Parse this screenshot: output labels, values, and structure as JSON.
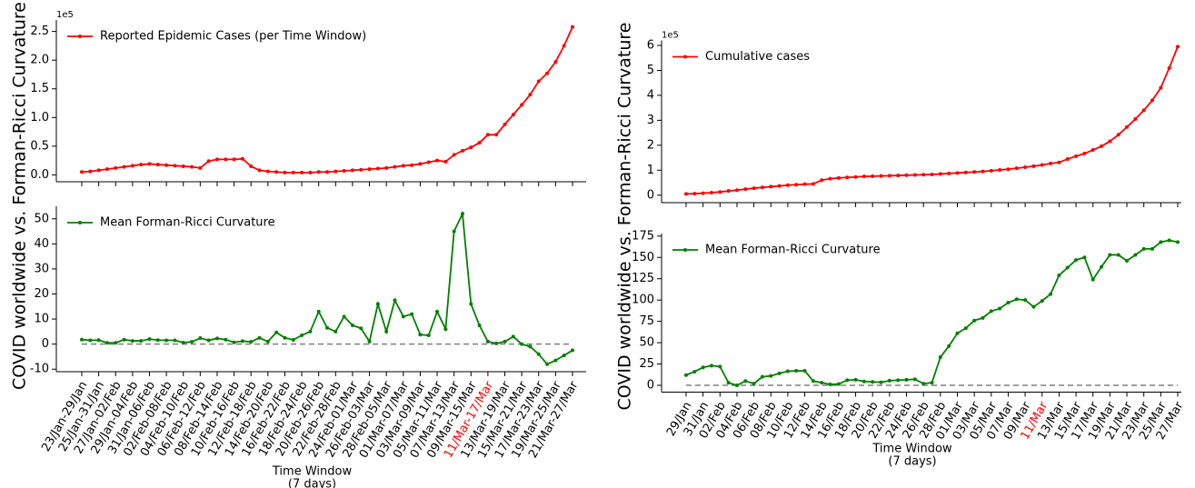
{
  "chart_data": [
    {
      "type": "line",
      "ylabel": "COVID worldwide vs. Forman-Ricci Curvature",
      "offset_label": "1e5",
      "legend": "upper left",
      "ylim": [
        -0.12,
        2.7
      ],
      "yticks": [
        {
          "value": 0,
          "label": "0.0"
        },
        {
          "value": 0.5,
          "label": "0.5"
        },
        {
          "value": 1,
          "label": "1.0"
        },
        {
          "value": 1.5,
          "label": "1.5"
        },
        {
          "value": 2,
          "label": "2.0"
        },
        {
          "value": 2.5,
          "label": "2.5"
        }
      ],
      "series": [
        {
          "name": "Reported Epidemic Cases (per Time Window)",
          "color": "#ff0000",
          "values": [
            0.05,
            0.06,
            0.08,
            0.1,
            0.12,
            0.14,
            0.16,
            0.18,
            0.19,
            0.18,
            0.17,
            0.16,
            0.15,
            0.14,
            0.12,
            0.24,
            0.27,
            0.27,
            0.27,
            0.28,
            0.15,
            0.08,
            0.06,
            0.05,
            0.04,
            0.04,
            0.04,
            0.04,
            0.05,
            0.05,
            0.06,
            0.07,
            0.08,
            0.09,
            0.1,
            0.11,
            0.12,
            0.14,
            0.16,
            0.17,
            0.19,
            0.22,
            0.25,
            0.23,
            0.35,
            0.42,
            0.48,
            0.56,
            0.7,
            0.7,
            0.88,
            1.05,
            1.22,
            1.4,
            1.63,
            1.77,
            1.97,
            2.25,
            2.58
          ]
        }
      ]
    },
    {
      "type": "line",
      "xlabel": [
        "Time Window",
        "(7 days)"
      ],
      "legend": "upper left",
      "categories": [
        "23/Jan-29/Jan",
        null,
        "25/Jan-31/Jan",
        null,
        "27/Jan-02/Feb",
        null,
        "29/Jan-04/Feb",
        null,
        "31/Jan-06/Feb",
        null,
        "02/Feb-08/Feb",
        null,
        "04/Feb-10/Feb",
        null,
        "06/Feb-12/Feb",
        null,
        "08/Feb-14/Feb",
        null,
        "10/Feb-16/Feb",
        null,
        "12/Feb-18/Feb",
        null,
        "14/Feb-20/Feb",
        null,
        "16/Feb-22/Feb",
        null,
        "18/Feb-24/Feb",
        null,
        "20/Feb-26/Feb",
        null,
        "22/Feb-28/Feb",
        null,
        "24/Feb-01/Mar",
        null,
        "26/Feb-03/Mar",
        null,
        "28/Feb-05/Mar",
        null,
        "01/Mar-07/Mar",
        null,
        "03/Mar-09/Mar",
        null,
        "05/Mar-11/Mar",
        null,
        "07/Mar-13/Mar",
        null,
        "09/Mar-15/Mar",
        null,
        "11/Mar-17/Mar",
        null,
        "13/Mar-19/Mar",
        null,
        "15/Mar-21/Mar",
        null,
        "17/Mar-23/Mar",
        null,
        "19/Mar-25/Mar",
        null,
        "21/Mar-27/Mar"
      ],
      "highlight": {
        "index": 48,
        "color": "#ff0000"
      },
      "hline": {
        "value": 0,
        "color": "#808080"
      },
      "ylim": [
        -11,
        55
      ],
      "yticks": [
        -10,
        0,
        10,
        20,
        30,
        40,
        50
      ],
      "series": [
        {
          "name": "Mean Forman-Ricci Curvature",
          "color": "#008000",
          "values": [
            1.8,
            1.5,
            1.6,
            0.5,
            0.5,
            1.8,
            1.3,
            1.3,
            2,
            1.6,
            1.5,
            1.5,
            0.6,
            0.9,
            2.4,
            1.5,
            2.3,
            1.8,
            0.7,
            1.2,
            0.9,
            2.5,
            1,
            4.7,
            2.5,
            1.7,
            3.5,
            5,
            13,
            6.5,
            5,
            11,
            7.5,
            6.3,
            1,
            16,
            5,
            17.5,
            11,
            12,
            3.8,
            3.5,
            13,
            6,
            45,
            52,
            16,
            7.5,
            1,
            0.3,
            1,
            3,
            0,
            -1,
            -4,
            -8,
            -6.5,
            -4.5,
            -2.5
          ]
        }
      ]
    },
    {
      "type": "line",
      "ylabel": "COVID worldwide vs. Forman-Ricci Curvature",
      "offset_label": "1e5",
      "legend": "upper left",
      "ylim": [
        -0.3,
        6.2
      ],
      "yticks": [
        0,
        1,
        2,
        3,
        4,
        5,
        6
      ],
      "series": [
        {
          "name": "Cumulative cases",
          "color": "#ff0000",
          "values": [
            0.05,
            0.06,
            0.08,
            0.1,
            0.13,
            0.17,
            0.2,
            0.24,
            0.28,
            0.31,
            0.34,
            0.37,
            0.4,
            0.42,
            0.44,
            0.45,
            0.6,
            0.66,
            0.69,
            0.71,
            0.73,
            0.75,
            0.76,
            0.77,
            0.78,
            0.79,
            0.8,
            0.81,
            0.82,
            0.83,
            0.85,
            0.87,
            0.89,
            0.91,
            0.93,
            0.95,
            0.98,
            1.01,
            1.04,
            1.08,
            1.12,
            1.16,
            1.21,
            1.27,
            1.31,
            1.45,
            1.56,
            1.67,
            1.81,
            1.96,
            2.16,
            2.42,
            2.73,
            3.05,
            3.4,
            3.8,
            4.3,
            5.1,
            5.95
          ]
        }
      ]
    },
    {
      "type": "line",
      "xlabel": [
        "Time Window",
        "(7 days)"
      ],
      "legend": "upper left",
      "categories": [
        "29/Jan",
        null,
        "31/Jan",
        null,
        "02/Feb",
        null,
        "04/Feb",
        null,
        "06/Feb",
        null,
        "08/Feb",
        null,
        "10/Feb",
        null,
        "12/Feb",
        null,
        "14/Feb",
        null,
        "16/Feb",
        null,
        "18/Feb",
        null,
        "20/Feb",
        null,
        "22/Feb",
        null,
        "24/Feb",
        null,
        "26/Feb",
        null,
        "28/Feb",
        null,
        "01/Mar",
        null,
        "03/Mar",
        null,
        "05/Mar",
        null,
        "07/Mar",
        null,
        "09/Mar",
        null,
        "11/Mar",
        null,
        "13/Mar",
        null,
        "15/Mar",
        null,
        "17/Mar",
        null,
        "19/Mar",
        null,
        "21/Mar",
        null,
        "23/Mar",
        null,
        "25/Mar",
        null,
        "27/Mar"
      ],
      "highlight": {
        "index": 42,
        "color": "#ff0000"
      },
      "hline": {
        "value": 0,
        "color": "#808080"
      },
      "ylim": [
        -8,
        178
      ],
      "yticks": [
        0,
        25,
        50,
        75,
        100,
        125,
        150,
        175
      ],
      "series": [
        {
          "name": "Mean Forman-Ricci Curvature",
          "color": "#008000",
          "values": [
            12,
            16,
            21,
            23,
            22,
            3,
            0,
            5,
            2,
            10,
            11,
            14,
            16.5,
            17,
            17,
            5,
            3,
            1,
            1.5,
            6,
            6.5,
            4.5,
            4,
            3.5,
            5.5,
            6,
            6.5,
            7,
            2,
            3,
            33,
            46,
            61,
            67,
            76,
            79,
            87,
            90,
            97,
            101,
            100,
            92,
            99,
            107,
            129,
            138,
            147,
            150,
            124,
            139,
            153,
            153,
            146,
            153,
            160,
            160,
            168,
            170,
            168
          ]
        }
      ]
    }
  ]
}
